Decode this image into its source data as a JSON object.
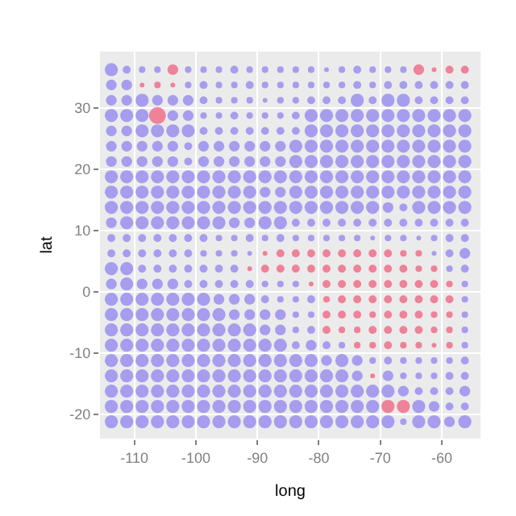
{
  "chart_data": {
    "type": "bubble",
    "xlabel": "long",
    "ylabel": "lat",
    "xlim": [
      -115.6,
      -53.7
    ],
    "ylim": [
      -24,
      39.2
    ],
    "xticks": [
      -110,
      -100,
      -90,
      -80,
      -70,
      -60
    ],
    "yticks": [
      -20,
      -10,
      0,
      10,
      20,
      30
    ],
    "grid": true,
    "marker": "circle",
    "series": [
      {
        "color": "#8a7cf0",
        "x": [
          -113.75,
          -111.25,
          -108.75,
          -106.25,
          -101.25,
          -98.75,
          -96.25,
          -93.75,
          -91.25,
          -88.75,
          -86.25,
          -83.75,
          -81.25,
          -78.75,
          -76.25,
          -73.75,
          -71.25,
          -68.75,
          -66.25,
          -113.75,
          -111.25,
          -101.25,
          -98.75,
          -96.25,
          -93.75,
          -91.25,
          -88.75,
          -86.25,
          -83.75,
          -81.25,
          -78.75,
          -76.25,
          -73.75,
          -71.25,
          -68.75,
          -66.25,
          -63.75,
          -61.25,
          -58.75,
          -56.25,
          -113.75,
          -111.25,
          -108.75,
          -106.25,
          -103.75,
          -101.25,
          -98.75,
          -96.25,
          -93.75,
          -91.25,
          -88.75,
          -86.25,
          -83.75,
          -81.25,
          -78.75,
          -76.25,
          -73.75,
          -71.25,
          -68.75,
          -66.25,
          -63.75,
          -61.25,
          -58.75,
          -56.25,
          -113.75,
          -111.25,
          -108.75,
          -103.75,
          -101.25,
          -98.75,
          -96.25,
          -93.75,
          -91.25,
          -88.75,
          -86.25,
          -83.75,
          -81.25,
          -78.75,
          -76.25,
          -73.75,
          -71.25,
          -68.75,
          -66.25,
          -63.75,
          -61.25,
          -58.75,
          -56.25,
          -113.75,
          -111.25,
          -108.75,
          -106.25,
          -103.75,
          -101.25,
          -98.75,
          -96.25,
          -93.75,
          -91.25,
          -88.75,
          -86.25,
          -83.75,
          -81.25,
          -78.75,
          -76.25,
          -73.75,
          -71.25,
          -68.75,
          -66.25,
          -63.75,
          -61.25,
          -58.75,
          -56.25,
          -113.75,
          -111.25,
          -108.75,
          -106.25,
          -103.75,
          -101.25,
          -98.75,
          -96.25,
          -93.75,
          -91.25,
          -88.75,
          -86.25,
          -83.75,
          -81.25,
          -78.75,
          -76.25,
          -73.75,
          -71.25,
          -68.75,
          -66.25,
          -63.75,
          -61.25,
          -58.75,
          -56.25,
          -113.75,
          -111.25,
          -108.75,
          -106.25,
          -103.75,
          -101.25,
          -98.75,
          -96.25,
          -93.75,
          -91.25,
          -88.75,
          -86.25,
          -83.75,
          -81.25,
          -78.75,
          -76.25,
          -73.75,
          -71.25,
          -68.75,
          -66.25,
          -63.75,
          -61.25,
          -58.75,
          -56.25,
          -113.75,
          -111.25,
          -108.75,
          -106.25,
          -103.75,
          -101.25,
          -98.75,
          -96.25,
          -93.75,
          -91.25,
          -88.75,
          -86.25,
          -83.75,
          -81.25,
          -78.75,
          -76.25,
          -73.75,
          -71.25,
          -68.75,
          -66.25,
          -63.75,
          -61.25,
          -58.75,
          -56.25,
          -113.75,
          -111.25,
          -108.75,
          -106.25,
          -103.75,
          -101.25,
          -98.75,
          -96.25,
          -93.75,
          -91.25,
          -88.75,
          -86.25,
          -83.75,
          -81.25,
          -78.75,
          -76.25,
          -73.75,
          -71.25,
          -68.75,
          -66.25,
          -63.75,
          -61.25,
          -58.75,
          -56.25,
          -113.75,
          -111.25,
          -108.75,
          -106.25,
          -103.75,
          -101.25,
          -98.75,
          -96.25,
          -93.75,
          -91.25,
          -88.75,
          -86.25,
          -83.75,
          -81.25,
          -78.75,
          -76.25,
          -73.75,
          -71.25,
          -68.75,
          -66.25,
          -63.75,
          -61.25,
          -58.75,
          -56.25,
          -113.75,
          -111.25,
          -108.75,
          -106.25,
          -103.75,
          -101.25,
          -98.75,
          -96.25,
          -93.75,
          -91.25,
          -88.75,
          -86.25,
          -83.75,
          -81.25,
          -78.75,
          -76.25,
          -73.75,
          -71.25,
          -68.75,
          -66.25,
          -63.75,
          -61.25,
          -58.75,
          -56.25,
          -113.75,
          -111.25,
          -108.75,
          -106.25,
          -103.75,
          -101.25,
          -98.75,
          -96.25,
          -93.75,
          -91.25,
          -88.75,
          -86.25,
          -83.75,
          -81.25,
          -78.75,
          -76.25,
          -73.75,
          -71.25,
          -68.75,
          -66.25,
          -63.75,
          -61.25,
          -58.75,
          -56.25,
          -113.75,
          -111.25,
          -108.75,
          -106.25,
          -103.75,
          -101.25,
          -98.75,
          -96.25,
          -93.75,
          -91.25,
          -61.25,
          -58.75,
          -56.25,
          -113.75,
          -111.25,
          -108.75,
          -106.25,
          -103.75,
          -101.25,
          -98.75,
          -96.25,
          -93.75,
          -58.75,
          -56.25,
          -113.75,
          -111.25,
          -108.75,
          -106.25,
          -103.75,
          -101.25,
          -98.75,
          -96.25,
          -93.75,
          -91.25,
          -88.75,
          -86.25,
          -83.75,
          -56.25,
          -113.75,
          -111.25,
          -108.75,
          -106.25,
          -103.75,
          -101.25,
          -98.75,
          -96.25,
          -93.75,
          -91.25,
          -88.75,
          -86.25,
          -83.75,
          -81.25,
          -56.25,
          -113.75,
          -111.25,
          -108.75,
          -106.25,
          -103.75,
          -101.25,
          -98.75,
          -96.25,
          -93.75,
          -91.25,
          -88.75,
          -86.25,
          -83.75,
          -81.25,
          -56.25,
          -113.75,
          -111.25,
          -108.75,
          -106.25,
          -103.75,
          -101.25,
          -98.75,
          -96.25,
          -93.75,
          -91.25,
          -88.75,
          -86.25,
          -83.75,
          -81.25,
          -56.25,
          -113.75,
          -111.25,
          -108.75,
          -106.25,
          -103.75,
          -101.25,
          -98.75,
          -96.25,
          -93.75,
          -91.25,
          -88.75,
          -86.25,
          -83.75,
          -81.25,
          -78.75,
          -76.25,
          -56.25,
          -113.75,
          -111.25,
          -108.75,
          -106.25,
          -103.75,
          -101.25,
          -98.75,
          -96.25,
          -93.75,
          -91.25,
          -88.75,
          -86.25,
          -83.75,
          -81.25,
          -78.75,
          -76.25,
          -73.75,
          -71.25,
          -68.75,
          -66.25,
          -63.75,
          -61.25,
          -58.75,
          -56.25,
          -113.75,
          -111.25,
          -108.75,
          -106.25,
          -103.75,
          -101.25,
          -98.75,
          -96.25,
          -93.75,
          -91.25,
          -88.75,
          -86.25,
          -83.75,
          -81.25,
          -78.75,
          -76.25,
          -73.75,
          -68.75,
          -66.25,
          -63.75,
          -61.25,
          -58.75,
          -56.25,
          -113.75,
          -111.25,
          -108.75,
          -106.25,
          -103.75,
          -101.25,
          -98.75,
          -96.25,
          -93.75,
          -91.25,
          -88.75,
          -86.25,
          -83.75,
          -81.25,
          -78.75,
          -76.25,
          -73.75,
          -71.25,
          -68.75,
          -66.25,
          -63.75,
          -61.25,
          -58.75,
          -56.25,
          -113.75,
          -111.25,
          -108.75,
          -106.25,
          -103.75,
          -101.25,
          -98.75,
          -96.25,
          -93.75,
          -91.25,
          -88.75,
          -86.25,
          -83.75,
          -81.25,
          -78.75,
          -76.25,
          -73.75,
          -71.25,
          -63.75,
          -61.25,
          -58.75,
          -56.25,
          -113.75,
          -111.25,
          -108.75,
          -106.25,
          -103.75,
          -101.25,
          -98.75,
          -96.25,
          -93.75,
          -91.25,
          -88.75,
          -86.25,
          -83.75,
          -81.25,
          -78.75,
          -76.25,
          -73.75,
          -71.25,
          -68.75,
          -66.25,
          -63.75,
          -61.25,
          -58.75,
          -56.25
        ],
        "values": [
          36.25,
          36.25,
          36.25,
          36.25,
          36.25,
          36.25,
          36.25,
          36.25,
          36.25,
          36.25,
          36.25,
          36.25,
          36.25,
          36.25,
          36.25,
          36.25,
          36.25,
          36.25,
          36.25,
          33.75,
          33.75,
          33.75,
          33.75,
          33.75,
          33.75,
          33.75,
          33.75,
          33.75,
          33.75,
          33.75,
          33.75,
          33.75,
          33.75,
          33.75,
          33.75,
          33.75,
          33.75,
          33.75,
          33.75,
          33.75,
          31.25,
          31.25,
          31.25,
          31.25,
          31.25,
          31.25,
          31.25,
          31.25,
          31.25,
          31.25,
          31.25,
          31.25,
          31.25,
          31.25,
          31.25,
          31.25,
          31.25,
          31.25,
          31.25,
          31.25,
          31.25,
          31.25,
          31.25,
          31.25,
          28.75,
          28.75,
          28.75,
          28.75,
          28.75,
          28.75,
          28.75,
          28.75,
          28.75,
          28.75,
          28.75,
          28.75,
          28.75,
          28.75,
          28.75,
          28.75,
          28.75,
          28.75,
          28.75,
          28.75,
          28.75,
          28.75,
          28.75,
          26.25,
          26.25,
          26.25,
          26.25,
          26.25,
          26.25,
          26.25,
          26.25,
          26.25,
          26.25,
          26.25,
          26.25,
          26.25,
          26.25,
          26.25,
          26.25,
          26.25,
          26.25,
          26.25,
          26.25,
          26.25,
          26.25,
          26.25,
          26.25,
          23.75,
          23.75,
          23.75,
          23.75,
          23.75,
          23.75,
          23.75,
          23.75,
          23.75,
          23.75,
          23.75,
          23.75,
          23.75,
          23.75,
          23.75,
          23.75,
          23.75,
          23.75,
          23.75,
          23.75,
          23.75,
          23.75,
          23.75,
          23.75,
          21.25,
          21.25,
          21.25,
          21.25,
          21.25,
          21.25,
          21.25,
          21.25,
          21.25,
          21.25,
          21.25,
          21.25,
          21.25,
          21.25,
          21.25,
          21.25,
          21.25,
          21.25,
          21.25,
          21.25,
          21.25,
          21.25,
          21.25,
          21.25,
          18.75,
          18.75,
          18.75,
          18.75,
          18.75,
          18.75,
          18.75,
          18.75,
          18.75,
          18.75,
          18.75,
          18.75,
          18.75,
          18.75,
          18.75,
          18.75,
          18.75,
          18.75,
          18.75,
          18.75,
          18.75,
          18.75,
          18.75,
          18.75,
          16.25,
          16.25,
          16.25,
          16.25,
          16.25,
          16.25,
          16.25,
          16.25,
          16.25,
          16.25,
          16.25,
          16.25,
          16.25,
          16.25,
          16.25,
          16.25,
          16.25,
          16.25,
          16.25,
          16.25,
          16.25,
          16.25,
          16.25,
          16.25,
          13.75,
          13.75,
          13.75,
          13.75,
          13.75,
          13.75,
          13.75,
          13.75,
          13.75,
          13.75,
          13.75,
          13.75,
          13.75,
          13.75,
          13.75,
          13.75,
          13.75,
          13.75,
          13.75,
          13.75,
          13.75,
          13.75,
          13.75,
          13.75,
          11.25,
          11.25,
          11.25,
          11.25,
          11.25,
          11.25,
          11.25,
          11.25,
          11.25,
          11.25,
          11.25,
          11.25,
          11.25,
          11.25,
          11.25,
          11.25,
          11.25,
          11.25,
          11.25,
          11.25,
          11.25,
          11.25,
          11.25,
          11.25,
          8.75,
          8.75,
          8.75,
          8.75,
          8.75,
          8.75,
          8.75,
          8.75,
          8.75,
          8.75,
          8.75,
          8.75,
          8.75,
          8.75,
          8.75,
          8.75,
          8.75,
          8.75,
          8.75,
          8.75,
          8.75,
          8.75,
          8.75,
          8.75,
          6.25,
          6.25,
          6.25,
          6.25,
          6.25,
          6.25,
          6.25,
          6.25,
          6.25,
          6.25,
          6.25,
          6.25,
          6.25,
          3.75,
          3.75,
          3.75,
          3.75,
          3.75,
          3.75,
          3.75,
          3.75,
          3.75,
          3.75,
          3.75,
          1.25,
          1.25,
          1.25,
          1.25,
          1.25,
          1.25,
          1.25,
          1.25,
          1.25,
          1.25,
          1.25,
          1.25,
          1.25,
          1.25,
          -1.25,
          -1.25,
          -1.25,
          -1.25,
          -1.25,
          -1.25,
          -1.25,
          -1.25,
          -1.25,
          -1.25,
          -1.25,
          -1.25,
          -1.25,
          -1.25,
          -1.25,
          -3.75,
          -3.75,
          -3.75,
          -3.75,
          -3.75,
          -3.75,
          -3.75,
          -3.75,
          -3.75,
          -3.75,
          -3.75,
          -3.75,
          -3.75,
          -3.75,
          -3.75,
          -6.25,
          -6.25,
          -6.25,
          -6.25,
          -6.25,
          -6.25,
          -6.25,
          -6.25,
          -6.25,
          -6.25,
          -6.25,
          -6.25,
          -6.25,
          -6.25,
          -6.25,
          -8.75,
          -8.75,
          -8.75,
          -8.75,
          -8.75,
          -8.75,
          -8.75,
          -8.75,
          -8.75,
          -8.75,
          -8.75,
          -8.75,
          -8.75,
          -8.75,
          -8.75,
          -8.75,
          -8.75,
          -11.25,
          -11.25,
          -11.25,
          -11.25,
          -11.25,
          -11.25,
          -11.25,
          -11.25,
          -11.25,
          -11.25,
          -11.25,
          -11.25,
          -11.25,
          -11.25,
          -11.25,
          -11.25,
          -11.25,
          -11.25,
          -11.25,
          -11.25,
          -11.25,
          -11.25,
          -11.25,
          -11.25,
          -13.75,
          -13.75,
          -13.75,
          -13.75,
          -13.75,
          -13.75,
          -13.75,
          -13.75,
          -13.75,
          -13.75,
          -13.75,
          -13.75,
          -13.75,
          -13.75,
          -13.75,
          -13.75,
          -13.75,
          -13.75,
          -13.75,
          -13.75,
          -13.75,
          -13.75,
          -13.75,
          -16.25,
          -16.25,
          -16.25,
          -16.25,
          -16.25,
          -16.25,
          -16.25,
          -16.25,
          -16.25,
          -16.25,
          -16.25,
          -16.25,
          -16.25,
          -16.25,
          -16.25,
          -16.25,
          -16.25,
          -16.25,
          -16.25,
          -16.25,
          -16.25,
          -16.25,
          -16.25,
          -16.25,
          -18.75,
          -18.75,
          -18.75,
          -18.75,
          -18.75,
          -18.75,
          -18.75,
          -18.75,
          -18.75,
          -18.75,
          -18.75,
          -18.75,
          -18.75,
          -18.75,
          -18.75,
          -18.75,
          -18.75,
          -18.75,
          -18.75,
          -18.75,
          -18.75,
          -18.75,
          -21.25,
          -21.25,
          -21.25,
          -21.25,
          -21.25,
          -21.25,
          -21.25,
          -21.25,
          -21.25,
          -21.25,
          -21.25,
          -21.25,
          -21.25,
          -21.25,
          -21.25,
          -21.25,
          -21.25,
          -21.25,
          -21.25,
          -21.25,
          -21.25,
          -21.25,
          -21.25,
          -21.25
        ],
        "sizes": [
          0.6,
          0.22,
          0.15,
          0.15,
          0.15,
          0.15,
          0.15,
          0.22,
          0.15,
          0.15,
          0.15,
          0.15,
          0.15,
          0.08,
          0.15,
          0.22,
          0.15,
          0.15,
          0.15,
          0.4,
          0.4,
          0.15,
          0.22,
          0.15,
          0.15,
          0.22,
          0.15,
          0.15,
          0.15,
          0.15,
          0.15,
          0.15,
          0.22,
          0.15,
          0.22,
          0.22,
          0.22,
          0.22,
          0.22,
          0.22,
          0.4,
          0.4,
          0.6,
          0.4,
          0.4,
          0.4,
          0.22,
          0.15,
          0.15,
          0.15,
          0.08,
          0.15,
          0.15,
          0.22,
          0.22,
          0.22,
          0.6,
          0.22,
          0.6,
          0.6,
          0.22,
          0.22,
          0.22,
          0.22,
          0.6,
          0.6,
          0.6,
          0.4,
          0.4,
          0.15,
          0.15,
          0.22,
          0.15,
          0.15,
          0.15,
          0.22,
          0.6,
          0.6,
          0.6,
          0.6,
          0.6,
          0.6,
          0.6,
          0.6,
          0.6,
          0.6,
          0.6,
          0.4,
          0.4,
          0.6,
          0.6,
          0.6,
          0.6,
          0.22,
          0.22,
          0.22,
          0.22,
          0.22,
          0.22,
          0.22,
          0.6,
          0.6,
          0.6,
          0.6,
          0.6,
          0.6,
          0.6,
          0.6,
          0.6,
          0.6,
          0.6,
          0.4,
          0.4,
          0.4,
          0.4,
          0.4,
          0.22,
          0.4,
          0.4,
          0.4,
          0.4,
          0.4,
          0.4,
          0.6,
          0.6,
          0.6,
          0.6,
          0.6,
          0.6,
          0.6,
          0.6,
          0.6,
          0.6,
          0.6,
          0.6,
          0.4,
          0.4,
          0.4,
          0.4,
          0.4,
          0.22,
          0.4,
          0.4,
          0.4,
          0.4,
          0.4,
          0.4,
          0.6,
          0.6,
          0.6,
          0.6,
          0.6,
          0.6,
          0.6,
          0.6,
          0.6,
          0.6,
          0.6,
          0.6,
          0.6,
          0.6,
          0.6,
          0.6,
          0.6,
          0.6,
          0.6,
          0.6,
          0.6,
          0.6,
          0.6,
          0.6,
          0.6,
          0.6,
          0.6,
          0.6,
          0.6,
          0.6,
          0.6,
          0.6,
          0.6,
          0.6,
          0.6,
          0.6,
          0.6,
          0.6,
          0.6,
          0.6,
          0.6,
          0.6,
          0.6,
          0.6,
          0.6,
          0.6,
          0.4,
          0.4,
          0.6,
          0.6,
          0.6,
          0.6,
          0.6,
          0.6,
          0.6,
          0.6,
          0.6,
          0.6,
          0.6,
          0.6,
          0.6,
          0.6,
          0.6,
          0.6,
          0.6,
          0.6,
          0.6,
          0.6,
          0.6,
          0.6,
          0.6,
          0.6,
          0.6,
          0.6,
          0.6,
          0.6,
          0.6,
          0.6,
          0.4,
          0.22,
          0.6,
          0.6,
          0.6,
          0.6,
          0.4,
          0.6,
          0.6,
          0.6,
          0.6,
          0.6,
          0.6,
          0.6,
          0.4,
          0.4,
          0.6,
          0.6,
          0.22,
          0.22,
          0.22,
          0.22,
          0.22,
          0.22,
          0.22,
          0.22,
          0.22,
          0.22,
          0.22,
          0.22,
          0.22,
          0.22,
          0.22,
          0.22,
          0.22,
          0.22,
          0.22,
          0.15,
          0.15,
          0.22,
          0.15,
          0.22,
          0.15,
          0.15,
          0.15,
          0.15,
          0.15,
          0.08,
          0.15,
          0.15,
          0.08,
          0.15,
          0.22,
          0.22,
          0.22,
          0.22,
          0.22,
          0.22,
          0.22,
          0.22,
          0.15,
          0.15,
          0.15,
          0.08,
          0.08,
          0.22,
          0.4,
          0.6,
          0.6,
          0.22,
          0.22,
          0.22,
          0.22,
          0.22,
          0.22,
          0.22,
          0.15,
          0.22,
          0.4,
          0.6,
          0.4,
          0.4,
          0.4,
          0.22,
          0.22,
          0.22,
          0.22,
          0.22,
          0.15,
          0.15,
          0.15,
          0.15,
          0.6,
          0.6,
          0.6,
          0.6,
          0.6,
          0.6,
          0.6,
          0.4,
          0.4,
          0.4,
          0.22,
          0.15,
          0.15,
          0.22,
          0.15,
          0.6,
          0.6,
          0.6,
          0.6,
          0.6,
          0.6,
          0.6,
          0.6,
          0.4,
          0.4,
          0.4,
          0.4,
          0.15,
          0.15,
          0.15,
          0.6,
          0.6,
          0.6,
          0.6,
          0.6,
          0.6,
          0.6,
          0.6,
          0.6,
          0.6,
          0.4,
          0.4,
          0.15,
          0.22,
          0.15,
          0.6,
          0.6,
          0.6,
          0.6,
          0.6,
          0.6,
          0.6,
          0.6,
          0.6,
          0.6,
          0.6,
          0.6,
          0.22,
          0.4,
          0.22,
          0.15,
          0.15,
          0.6,
          0.6,
          0.6,
          0.6,
          0.6,
          0.6,
          0.6,
          0.6,
          0.6,
          0.6,
          0.6,
          0.6,
          0.6,
          0.6,
          0.4,
          0.6,
          0.4,
          0.15,
          0.22,
          0.15,
          0.15,
          0.15,
          0.15,
          0.22,
          0.6,
          0.6,
          0.6,
          0.6,
          0.6,
          0.6,
          0.6,
          0.6,
          0.6,
          0.6,
          0.6,
          0.6,
          0.6,
          0.6,
          0.6,
          0.6,
          0.4,
          0.4,
          0.15,
          0.15,
          0.15,
          0.22,
          0.22,
          0.6,
          0.6,
          0.6,
          0.6,
          0.6,
          0.6,
          0.6,
          0.6,
          0.6,
          0.6,
          0.6,
          0.6,
          0.6,
          0.6,
          0.6,
          0.6,
          0.6,
          0.6,
          0.6,
          0.4,
          0.22,
          0.22,
          0.22,
          0.4,
          0.6,
          0.6,
          0.6,
          0.6,
          0.6,
          0.6,
          0.6,
          0.6,
          0.6,
          0.6,
          0.6,
          0.6,
          0.6,
          0.6,
          0.6,
          0.6,
          0.6,
          0.6,
          0.6,
          0.4,
          0.22,
          0.22,
          0.6,
          0.6,
          0.6,
          0.6,
          0.6,
          0.6,
          0.6,
          0.6,
          0.6,
          0.6,
          0.6,
          0.6,
          0.6,
          0.6,
          0.6,
          0.6,
          0.6,
          0.6,
          0.6,
          0.15,
          0.6,
          0.6,
          0.4,
          0.6
        ]
      },
      {
        "color": "#ef5675",
        "x": [
          -103.75,
          -63.75,
          -61.25,
          -58.75,
          -56.25,
          -108.75,
          -106.25,
          -103.75,
          -106.25,
          -88.75,
          -86.25,
          -83.75,
          -81.25,
          -78.75,
          -76.25,
          -73.75,
          -71.25,
          -68.75,
          -66.25,
          -63.75,
          -91.25,
          -88.75,
          -86.25,
          -83.75,
          -81.25,
          -78.75,
          -76.25,
          -73.75,
          -71.25,
          -68.75,
          -66.25,
          -63.75,
          -61.25,
          -81.25,
          -78.75,
          -76.25,
          -73.75,
          -71.25,
          -68.75,
          -66.25,
          -63.75,
          -61.25,
          -58.75,
          -78.75,
          -76.25,
          -73.75,
          -71.25,
          -68.75,
          -66.25,
          -63.75,
          -61.25,
          -58.75,
          -78.75,
          -76.25,
          -73.75,
          -71.25,
          -68.75,
          -66.25,
          -63.75,
          -61.25,
          -58.75,
          -78.75,
          -76.25,
          -73.75,
          -71.25,
          -68.75,
          -66.25,
          -63.75,
          -61.25,
          -58.75,
          -73.75,
          -71.25,
          -68.75,
          -66.25,
          -63.75,
          -61.25,
          -58.75,
          -71.25,
          -68.75,
          -66.25
        ],
        "values": [
          36.25,
          36.25,
          36.25,
          36.25,
          36.25,
          33.75,
          33.75,
          33.75,
          28.75,
          6.25,
          6.25,
          6.25,
          6.25,
          6.25,
          6.25,
          6.25,
          6.25,
          6.25,
          6.25,
          6.25,
          3.75,
          3.75,
          3.75,
          3.75,
          3.75,
          3.75,
          3.75,
          3.75,
          3.75,
          3.75,
          3.75,
          3.75,
          3.75,
          1.25,
          1.25,
          1.25,
          1.25,
          1.25,
          1.25,
          1.25,
          1.25,
          1.25,
          1.25,
          -1.25,
          -1.25,
          -1.25,
          -1.25,
          -1.25,
          -1.25,
          -1.25,
          -1.25,
          -1.25,
          -3.75,
          -3.75,
          -3.75,
          -3.75,
          -3.75,
          -3.75,
          -3.75,
          -3.75,
          -3.75,
          -6.25,
          -6.25,
          -6.25,
          -6.25,
          -6.25,
          -6.25,
          -6.25,
          -6.25,
          -6.25,
          -8.75,
          -8.75,
          -8.75,
          -8.75,
          -8.75,
          -8.75,
          -8.75,
          -13.75,
          -18.75,
          -18.75
        ],
        "sizes": [
          0.4,
          0.4,
          0.08,
          0.22,
          0.22,
          0.08,
          0.15,
          0.08,
          1,
          0.08,
          0.22,
          0.22,
          0.22,
          0.22,
          0.22,
          0.22,
          0.22,
          0.22,
          0.15,
          0.15,
          0.08,
          0.22,
          0.22,
          0.22,
          0.22,
          0.22,
          0.22,
          0.22,
          0.22,
          0.22,
          0.22,
          0.15,
          0.15,
          0.08,
          0.22,
          0.22,
          0.22,
          0.22,
          0.22,
          0.22,
          0.22,
          0.22,
          0.15,
          0.15,
          0.22,
          0.22,
          0.22,
          0.22,
          0.22,
          0.22,
          0.22,
          0.22,
          0.22,
          0.22,
          0.22,
          0.15,
          0.22,
          0.22,
          0.22,
          0.15,
          0.15,
          0.22,
          0.15,
          0.15,
          0.22,
          0.22,
          0.22,
          0.22,
          0.15,
          0.15,
          0.15,
          0.15,
          0.22,
          0.15,
          0.15,
          0.08,
          0.15,
          0.08,
          0.6,
          0.6
        ]
      }
    ]
  }
}
